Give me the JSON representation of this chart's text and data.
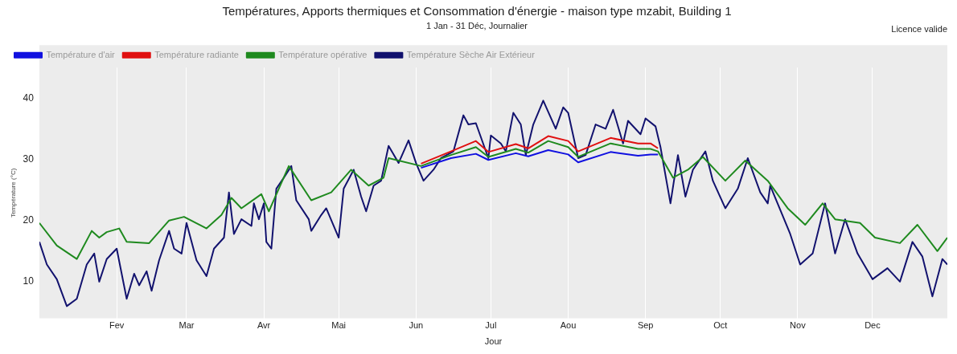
{
  "chart_data": {
    "type": "line",
    "title": "Températures, Apports thermiques et Consommation d'énergie - maison type mzabit, Building 1",
    "subtitle": "1 Jan - 31 Déc, Journalier",
    "xlabel": "Jour",
    "ylabel": "Température (°C)",
    "annotations": [
      "Licence valide"
    ],
    "xlim": [
      "--01-01",
      "--12-31"
    ],
    "xticks": [
      {
        "value": "--02-01",
        "label": "Fev"
      },
      {
        "value": "--03-01",
        "label": "Mar"
      },
      {
        "value": "--04-01",
        "label": "Avr"
      },
      {
        "value": "--05-01",
        "label": "Mai"
      },
      {
        "value": "--06-01",
        "label": "Jun"
      },
      {
        "value": "--07-01",
        "label": "Jul"
      },
      {
        "value": "--08-01",
        "label": "Aou"
      },
      {
        "value": "--09-01",
        "label": "Sep"
      },
      {
        "value": "--10-01",
        "label": "Oct"
      },
      {
        "value": "--11-01",
        "label": "Nov"
      },
      {
        "value": "--12-01",
        "label": "Dec"
      }
    ],
    "ylim": [
      4,
      45
    ],
    "yticks": [
      10,
      20,
      30,
      40
    ],
    "grid": "x",
    "legend": "top left",
    "marker": "none",
    "line_style": "solid",
    "series": [
      {
        "name": "Température d'air",
        "color": "#1010e0",
        "x": [
          "--06-03",
          "--06-15",
          "--06-25",
          "--06-30",
          "--07-11",
          "--07-16",
          "--07-24",
          "--08-01",
          "--08-05",
          "--08-18",
          "--08-29",
          "--09-03",
          "--09-06"
        ],
        "values": [
          28.6,
          30.2,
          30.9,
          29.9,
          31,
          30.5,
          31.5,
          30.8,
          29.5,
          31.2,
          30.6,
          30.8,
          30.8
        ]
      },
      {
        "name": "Température radiante",
        "color": "#e01010",
        "x": [
          "--06-03",
          "--06-15",
          "--06-25",
          "--06-30",
          "--07-11",
          "--07-16",
          "--07-24",
          "--08-01",
          "--08-05",
          "--08-18",
          "--08-29",
          "--09-03",
          "--09-06"
        ],
        "values": [
          29.3,
          31.3,
          33,
          31.2,
          32.5,
          31.8,
          33.8,
          33,
          31.3,
          33.5,
          32.6,
          32.6,
          31.8
        ]
      },
      {
        "name": "Température opérative",
        "color": "#1f8a1f",
        "x": [
          "--01-01",
          "--01-08",
          "--01-16",
          "--01-22",
          "--01-25",
          "--01-28",
          "--02-02",
          "--02-05",
          "--02-14",
          "--02-22",
          "--02-28",
          "--03-09",
          "--03-15",
          "--03-19",
          "--03-23",
          "--03-31",
          "--04-03",
          "--04-11",
          "--04-20",
          "--04-28",
          "--05-06",
          "--05-13",
          "--05-19",
          "--05-21",
          "--06-03",
          "--06-15",
          "--06-25",
          "--06-30",
          "--07-11",
          "--07-16",
          "--07-24",
          "--08-01",
          "--08-05",
          "--08-18",
          "--08-29",
          "--09-03",
          "--09-06",
          "--09-12",
          "--09-18",
          "--09-24",
          "--10-03",
          "--10-11",
          "--10-20",
          "--10-28",
          "--11-04",
          "--11-11",
          "--11-16",
          "--11-26",
          "--12-02",
          "--12-12",
          "--12-19",
          "--12-27",
          "--12-31"
        ],
        "values": [
          19.6,
          15.9,
          13.7,
          18.3,
          17.2,
          18.1,
          18.7,
          16.5,
          16.3,
          20,
          20.6,
          18.7,
          20.9,
          23.7,
          22,
          24.3,
          21.5,
          28.9,
          23.3,
          24.6,
          28.3,
          25.7,
          27,
          30.2,
          28.9,
          30.7,
          32,
          30.4,
          31.7,
          31.1,
          33,
          32,
          30.4,
          32.6,
          31.7,
          31.7,
          31.3,
          27,
          28.3,
          30.4,
          26.5,
          29.8,
          26.5,
          22,
          19.3,
          22.8,
          20.2,
          19.6,
          17.2,
          16.3,
          19.3,
          15,
          17.2
        ]
      },
      {
        "name": "Température Sèche Air Extérieur",
        "color": "#12126e",
        "x": [
          "--01-01",
          "--01-04",
          "--01-08",
          "--01-12",
          "--01-16",
          "--01-20",
          "--01-23",
          "--01-25",
          "--01-28",
          "--02-01",
          "--02-05",
          "--02-08",
          "--02-10",
          "--02-13",
          "--02-15",
          "--02-18",
          "--02-22",
          "--02-24",
          "--02-27",
          "--03-01",
          "--03-05",
          "--03-09",
          "--03-12",
          "--03-16",
          "--03-18",
          "--03-20",
          "--03-23",
          "--03-27",
          "--03-28",
          "--03-30",
          "--04-01",
          "--04-02",
          "--04-04",
          "--04-06",
          "--04-09",
          "--04-12",
          "--04-14",
          "--04-19",
          "--04-20",
          "--04-24",
          "--04-26",
          "--05-01",
          "--05-03",
          "--05-07",
          "--05-10",
          "--05-12",
          "--05-15",
          "--05-18",
          "--05-21",
          "--05-25",
          "--05-29",
          "--06-01",
          "--06-04",
          "--06-08",
          "--06-11",
          "--06-16",
          "--06-20",
          "--06-22",
          "--06-25",
          "--06-30",
          "--07-01",
          "--07-05",
          "--07-07",
          "--07-10",
          "--07-13",
          "--07-15",
          "--07-18",
          "--07-22",
          "--07-27",
          "--07-30",
          "--08-01",
          "--08-05",
          "--08-08",
          "--08-12",
          "--08-16",
          "--08-19",
          "--08-23",
          "--08-25",
          "--08-30",
          "--09-01",
          "--09-05",
          "--09-07",
          "--09-11",
          "--09-14",
          "--09-17",
          "--09-20",
          "--09-25",
          "--09-28",
          "--10-03",
          "--10-08",
          "--10-12",
          "--10-17",
          "--10-20",
          "--10-21",
          "--10-29",
          "--11-02",
          "--11-07",
          "--11-12",
          "--11-16",
          "--11-20",
          "--11-25",
          "--12-01",
          "--12-07",
          "--12-12",
          "--12-17",
          "--12-21",
          "--12-25",
          "--12-29",
          "--12-31"
        ],
        "values": [
          16.5,
          12.8,
          10.4,
          6,
          7.2,
          12.8,
          14.6,
          10,
          13.7,
          15.4,
          7.2,
          11.3,
          9.4,
          11.7,
          8.5,
          13.5,
          18.3,
          15.4,
          14.6,
          19.6,
          13.5,
          10.9,
          15.4,
          17.2,
          24.6,
          17.8,
          20.2,
          19.1,
          22.8,
          20.2,
          22.8,
          16.5,
          15.4,
          25.2,
          27,
          28.9,
          23.3,
          20.2,
          18.3,
          20.9,
          22,
          17.2,
          25.2,
          28.3,
          23.9,
          21.5,
          25.7,
          26.5,
          32.2,
          29.4,
          33.1,
          29.4,
          26.5,
          28.3,
          30.2,
          31.3,
          37.2,
          35.7,
          35.9,
          30.2,
          33.9,
          32.6,
          31.3,
          37.6,
          35.7,
          30.7,
          35.7,
          39.6,
          35,
          38.5,
          37.6,
          30.2,
          30.7,
          35.7,
          35,
          38.1,
          32.6,
          36.3,
          34.1,
          36.7,
          35.4,
          32,
          22.8,
          30.7,
          23.9,
          28.3,
          31.3,
          26.5,
          22,
          25.2,
          30.2,
          24.6,
          22.8,
          25.7,
          17.8,
          12.8,
          14.6,
          22.8,
          14.6,
          20.2,
          14.6,
          10.4,
          12.2,
          10,
          16.5,
          14.1,
          7.6,
          13.7,
          12.8
        ]
      }
    ]
  }
}
